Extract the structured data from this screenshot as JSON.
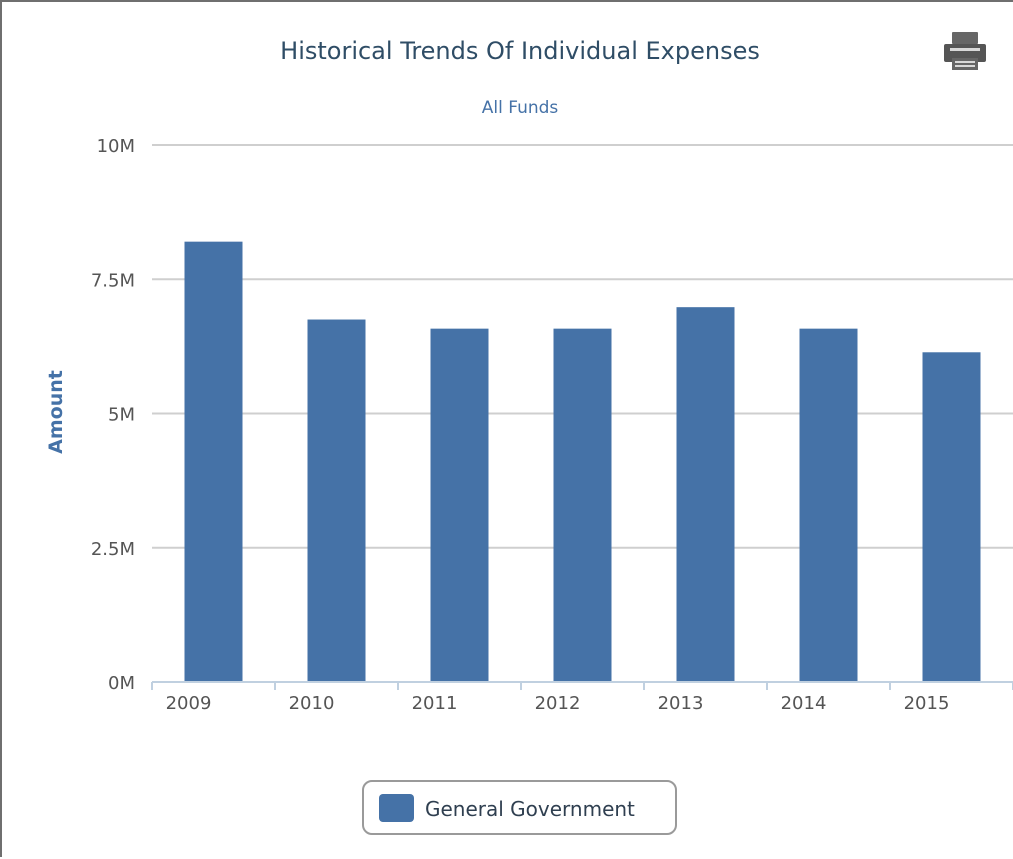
{
  "chart_data": {
    "type": "bar",
    "title": "Historical Trends Of Individual Expenses",
    "subtitle": "All Funds",
    "xlabel": "",
    "ylabel": "Amount",
    "categories": [
      "2009",
      "2010",
      "2011",
      "2012",
      "2013",
      "2014",
      "2015"
    ],
    "series": [
      {
        "name": "General Government",
        "color": "#4572a7",
        "values": [
          8200000,
          6750000,
          6580000,
          6580000,
          6980000,
          6580000,
          6140000
        ]
      }
    ],
    "ylim": [
      0,
      10000000
    ],
    "yticks": [
      0,
      2500000,
      5000000,
      7500000,
      10000000
    ],
    "ytick_labels": [
      "0M",
      "2.5M",
      "5M",
      "7.5M",
      "10M"
    ],
    "grid": true,
    "legend_position": "bottom-center"
  },
  "toolbar": {
    "print_icon": "printer-icon"
  }
}
